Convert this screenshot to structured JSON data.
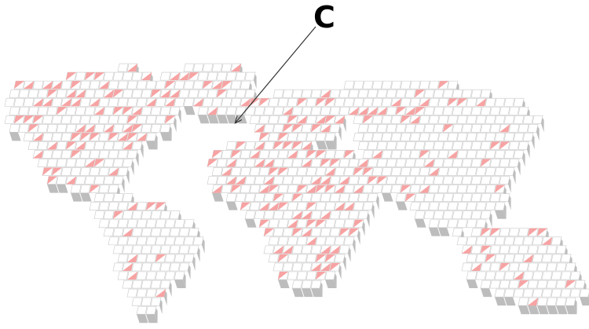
{
  "map": {
    "style": "isometric pixel-block world map",
    "colors": {
      "tile_top": "#ffffff",
      "tile_outline": "#c9c9c9",
      "tile_side": "#bdbdbd",
      "tile_highlight": "#f7a3a3",
      "callout_line": "#333333",
      "callout_text": "#000000"
    },
    "regions": [
      {
        "name": "north-america",
        "highlight_density": 0.32
      },
      {
        "name": "greenland",
        "highlight_density": 0.3
      },
      {
        "name": "south-america",
        "highlight_density": 0.12
      },
      {
        "name": "europe",
        "highlight_density": 0.45
      },
      {
        "name": "africa",
        "highlight_density": 0.4
      },
      {
        "name": "asia",
        "highlight_density": 0.12
      },
      {
        "name": "australia",
        "highlight_density": 0.1
      }
    ]
  },
  "callout": {
    "label": "C",
    "icon": "arrow-pointer-icon"
  }
}
